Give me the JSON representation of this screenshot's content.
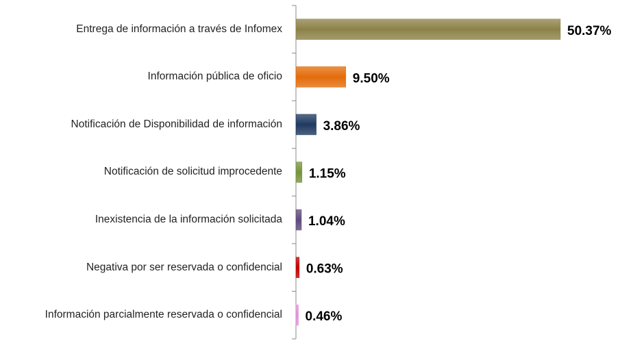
{
  "chart_data": {
    "type": "bar",
    "orientation": "horizontal",
    "categories": [
      "Entrega de información a través de Infomex",
      "Información pública de oficio",
      "Notificación de Disponibilidad de información",
      "Notificación de solicitud improcedente",
      "Inexistencia de la información solicitada",
      "Negativa por ser reservada o confidencial",
      "Información parcialmente reservada o confidencial"
    ],
    "values": [
      50.37,
      9.5,
      3.86,
      1.15,
      1.04,
      0.63,
      0.46
    ],
    "value_labels": [
      "50.37%",
      "9.50%",
      "3.86%",
      "1.15%",
      "1.04%",
      "0.63%",
      "0.46%"
    ],
    "colors": [
      "#8c8248",
      "#e46c0a",
      "#1f3a60",
      "#77933c",
      "#604a7b",
      "#c00000",
      "#e48fd8"
    ]
  }
}
